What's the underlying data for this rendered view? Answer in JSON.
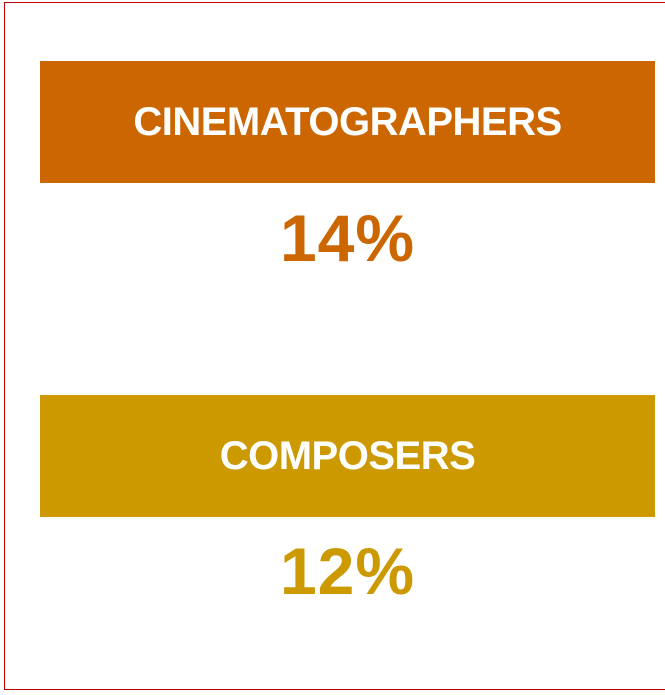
{
  "items": [
    {
      "label": "CINEMATOGRAPHERS",
      "value": "14%"
    },
    {
      "label": "COMPOSERS",
      "value": "12%"
    }
  ]
}
